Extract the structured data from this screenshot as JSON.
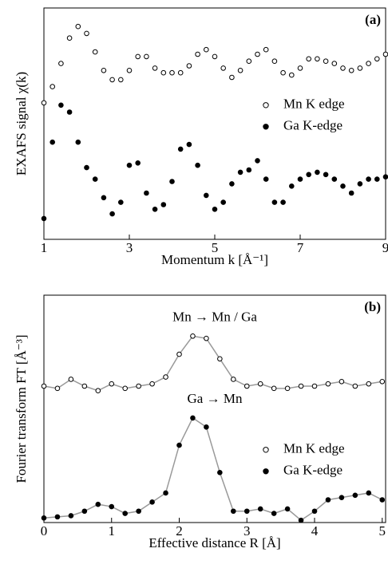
{
  "chart_data": [
    {
      "type": "scatter",
      "panel_label": "(a)",
      "xlabel": "Momentum  k [Å⁻¹]",
      "ylabel": "EXAFS signal  χ(k)",
      "xlim": [
        1,
        9
      ],
      "xticks": [
        1,
        3,
        5,
        7,
        9
      ],
      "ylim": [
        0,
        10
      ],
      "legend": "right",
      "connect": false,
      "x": [
        1.0,
        1.2,
        1.4,
        1.6,
        1.8,
        2.0,
        2.2,
        2.4,
        2.6,
        2.8,
        3.0,
        3.2,
        3.4,
        3.6,
        3.8,
        4.0,
        4.2,
        4.4,
        4.6,
        4.8,
        5.0,
        5.2,
        5.4,
        5.6,
        5.8,
        6.0,
        6.2,
        6.4,
        6.6,
        6.8,
        7.0,
        7.2,
        7.4,
        7.6,
        7.8,
        8.0,
        8.2,
        8.4,
        8.6,
        8.8,
        9.0
      ],
      "series": [
        {
          "name": "Mn K edge",
          "color": "#000000",
          "marker": "open",
          "values": [
            5.9,
            6.6,
            7.6,
            8.7,
            9.2,
            8.9,
            8.1,
            7.3,
            6.9,
            6.9,
            7.3,
            7.9,
            7.9,
            7.4,
            7.2,
            7.2,
            7.2,
            7.5,
            8.0,
            8.2,
            7.9,
            7.4,
            7.0,
            7.3,
            7.7,
            8.0,
            8.2,
            7.7,
            7.2,
            7.1,
            7.4,
            7.8,
            7.8,
            7.7,
            7.6,
            7.4,
            7.3,
            7.4,
            7.6,
            7.8,
            8.0
          ]
        },
        {
          "name": "Ga K-edge",
          "color": "#000000",
          "marker": "filled",
          "values": [
            0.9,
            4.2,
            5.8,
            5.5,
            4.2,
            3.1,
            2.6,
            1.8,
            1.1,
            1.6,
            3.2,
            3.3,
            2.0,
            1.3,
            1.5,
            2.5,
            3.9,
            4.1,
            3.2,
            1.9,
            1.3,
            1.6,
            2.4,
            2.9,
            3.0,
            3.4,
            2.6,
            1.6,
            1.6,
            2.3,
            2.6,
            2.8,
            2.9,
            2.8,
            2.6,
            2.3,
            2.0,
            2.4,
            2.6,
            2.6,
            2.7
          ]
        }
      ]
    },
    {
      "type": "scatter",
      "panel_label": "(b)",
      "xlabel": "Effective distance  R [Å]",
      "ylabel": "Fourier transform  FT [Å⁻³]",
      "annotations": [
        "Mn → Mn / Ga",
        "Ga → Mn"
      ],
      "xlim": [
        0,
        5.05
      ],
      "xticks": [
        0,
        1,
        2,
        3,
        4,
        5
      ],
      "ylim": [
        0,
        10
      ],
      "legend": "right",
      "connect": true,
      "x": [
        0,
        0.2,
        0.4,
        0.6,
        0.8,
        1.0,
        1.2,
        1.4,
        1.6,
        1.8,
        2.0,
        2.2,
        2.4,
        2.6,
        2.8,
        3.0,
        3.2,
        3.4,
        3.6,
        3.8,
        4.0,
        4.2,
        4.4,
        4.6,
        4.8,
        5.0
      ],
      "series": [
        {
          "name": "Mn K edge",
          "color": "#000000",
          "marker": "open",
          "values": [
            6.0,
            5.9,
            6.3,
            6.0,
            5.8,
            6.1,
            5.9,
            6.0,
            6.1,
            6.4,
            7.4,
            8.2,
            8.1,
            7.2,
            6.3,
            6.0,
            6.1,
            5.9,
            5.9,
            6.0,
            6.0,
            6.1,
            6.2,
            6.0,
            6.1,
            6.2
          ]
        },
        {
          "name": "Ga K-edge",
          "color": "#000000",
          "marker": "filled",
          "values": [
            0.2,
            0.25,
            0.3,
            0.5,
            0.8,
            0.7,
            0.4,
            0.5,
            0.9,
            1.3,
            3.4,
            4.6,
            4.2,
            2.2,
            0.5,
            0.5,
            0.6,
            0.4,
            0.6,
            0.1,
            0.5,
            1.0,
            1.1,
            1.2,
            1.3,
            1.0
          ]
        }
      ]
    }
  ]
}
